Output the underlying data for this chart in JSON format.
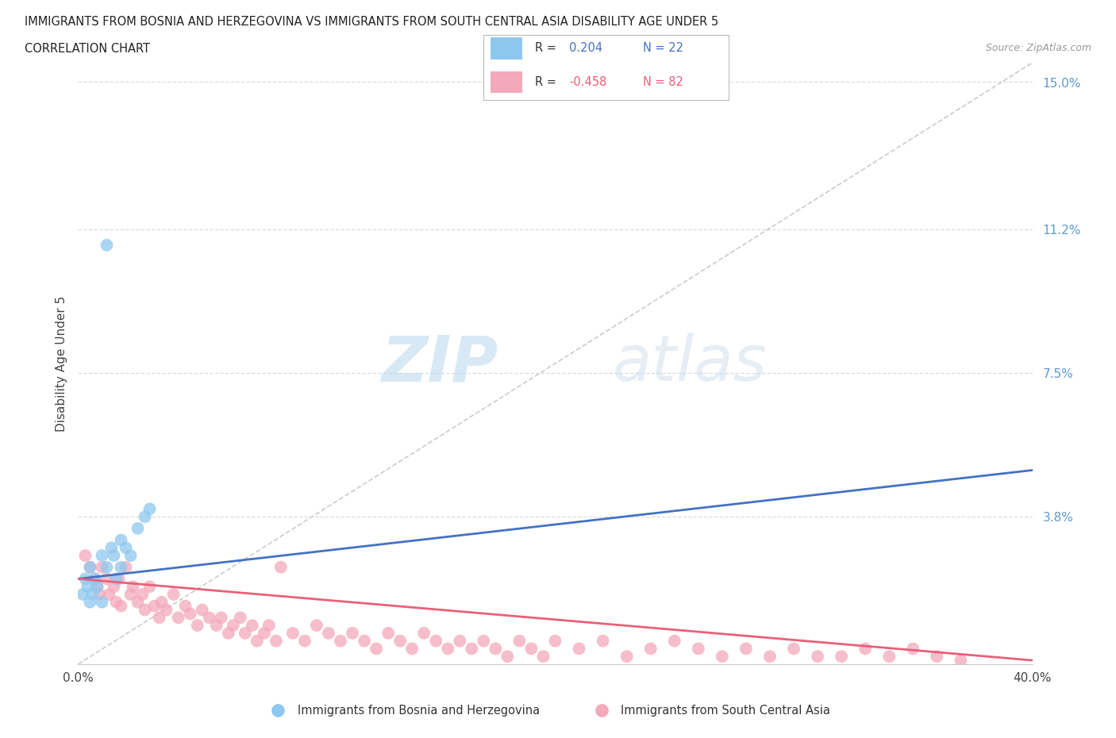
{
  "title_line1": "IMMIGRANTS FROM BOSNIA AND HERZEGOVINA VS IMMIGRANTS FROM SOUTH CENTRAL ASIA DISABILITY AGE UNDER 5",
  "title_line2": "CORRELATION CHART",
  "source_text": "Source: ZipAtlas.com",
  "ylabel": "Disability Age Under 5",
  "xlim": [
    0.0,
    0.4
  ],
  "ylim": [
    0.0,
    0.155
  ],
  "ytick_positions": [
    0.0,
    0.038,
    0.075,
    0.112,
    0.15
  ],
  "ytick_labels": [
    "",
    "3.8%",
    "7.5%",
    "11.2%",
    "15.0%"
  ],
  "bosnia_color": "#8ec8ef",
  "south_asia_color": "#f4a8bc",
  "bosnia_line_color": "#4472c4",
  "south_asia_line_color": "#e8607a",
  "legend_bosnia_label": "Immigrants from Bosnia and Herzegovina",
  "legend_south_asia_label": "Immigrants from South Central Asia",
  "R_bosnia": 0.204,
  "N_bosnia": 22,
  "R_south_asia": -0.458,
  "N_south_asia": 82,
  "watermark_zip": "ZIP",
  "watermark_atlas": "atlas",
  "grid_color": "#dddddd",
  "bosnia_scatter_x": [
    0.002,
    0.003,
    0.004,
    0.005,
    0.005,
    0.006,
    0.007,
    0.008,
    0.01,
    0.01,
    0.012,
    0.014,
    0.015,
    0.016,
    0.018,
    0.018,
    0.02,
    0.022,
    0.025,
    0.028,
    0.03,
    0.012
  ],
  "bosnia_scatter_y": [
    0.018,
    0.022,
    0.02,
    0.025,
    0.016,
    0.018,
    0.022,
    0.02,
    0.028,
    0.016,
    0.025,
    0.03,
    0.028,
    0.022,
    0.032,
    0.025,
    0.03,
    0.028,
    0.035,
    0.038,
    0.04,
    0.108
  ],
  "south_asia_scatter_x": [
    0.003,
    0.005,
    0.007,
    0.008,
    0.009,
    0.01,
    0.012,
    0.013,
    0.015,
    0.016,
    0.017,
    0.018,
    0.02,
    0.022,
    0.023,
    0.025,
    0.027,
    0.028,
    0.03,
    0.032,
    0.034,
    0.035,
    0.037,
    0.04,
    0.042,
    0.045,
    0.047,
    0.05,
    0.052,
    0.055,
    0.058,
    0.06,
    0.063,
    0.065,
    0.068,
    0.07,
    0.073,
    0.075,
    0.078,
    0.08,
    0.083,
    0.085,
    0.09,
    0.095,
    0.1,
    0.105,
    0.11,
    0.115,
    0.12,
    0.125,
    0.13,
    0.135,
    0.14,
    0.145,
    0.15,
    0.155,
    0.16,
    0.165,
    0.17,
    0.175,
    0.18,
    0.185,
    0.19,
    0.195,
    0.2,
    0.21,
    0.22,
    0.23,
    0.24,
    0.25,
    0.26,
    0.27,
    0.28,
    0.29,
    0.3,
    0.31,
    0.32,
    0.33,
    0.34,
    0.35,
    0.36,
    0.37
  ],
  "south_asia_scatter_y": [
    0.028,
    0.025,
    0.022,
    0.02,
    0.018,
    0.025,
    0.022,
    0.018,
    0.02,
    0.016,
    0.022,
    0.015,
    0.025,
    0.018,
    0.02,
    0.016,
    0.018,
    0.014,
    0.02,
    0.015,
    0.012,
    0.016,
    0.014,
    0.018,
    0.012,
    0.015,
    0.013,
    0.01,
    0.014,
    0.012,
    0.01,
    0.012,
    0.008,
    0.01,
    0.012,
    0.008,
    0.01,
    0.006,
    0.008,
    0.01,
    0.006,
    0.025,
    0.008,
    0.006,
    0.01,
    0.008,
    0.006,
    0.008,
    0.006,
    0.004,
    0.008,
    0.006,
    0.004,
    0.008,
    0.006,
    0.004,
    0.006,
    0.004,
    0.006,
    0.004,
    0.002,
    0.006,
    0.004,
    0.002,
    0.006,
    0.004,
    0.006,
    0.002,
    0.004,
    0.006,
    0.004,
    0.002,
    0.004,
    0.002,
    0.004,
    0.002,
    0.002,
    0.004,
    0.002,
    0.004,
    0.002,
    0.001
  ],
  "bos_trend_x": [
    0.0,
    0.4
  ],
  "bos_trend_y": [
    0.022,
    0.05
  ],
  "sa_trend_x": [
    0.0,
    0.4
  ],
  "sa_trend_y": [
    0.022,
    0.001
  ]
}
